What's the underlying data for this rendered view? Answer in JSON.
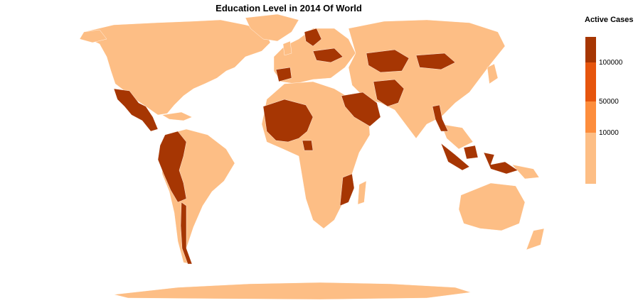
{
  "title": "Education Level in 2014 Of World",
  "legend": {
    "title": "Active Cases",
    "ticks": [
      "100000",
      "50000",
      "10000"
    ]
  },
  "colors": {
    "low": "#fdbe85",
    "mid": "#fd8d3c",
    "high": "#e6550d",
    "highest": "#a63603",
    "border": "#ffffff"
  },
  "map": {
    "projection": "world equirectangular-like",
    "regions_highest_class": [
      "Mexico",
      "Guatemala",
      "Honduras",
      "Nicaragua",
      "Colombia",
      "Ecuador",
      "Peru",
      "Chile",
      "Mali",
      "Niger",
      "Chad",
      "Burkina Faso",
      "Nigeria",
      "Cameroon",
      "Gabon",
      "Saudi Arabia",
      "Iran",
      "Pakistan",
      "Myanmar",
      "Kazakhstan",
      "Mongolia",
      "Indonesia",
      "Mozambique",
      "Malawi",
      "Spain",
      "Sweden",
      "Poland",
      "Ukraine"
    ]
  }
}
